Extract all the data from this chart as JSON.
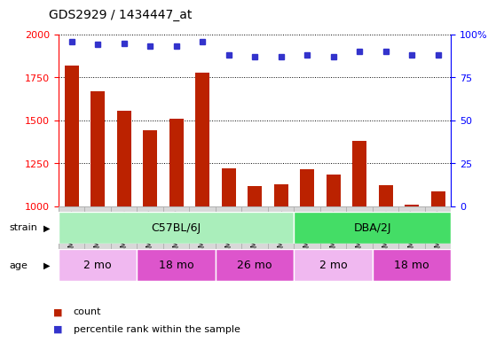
{
  "title": "GDS2929 / 1434447_at",
  "samples": [
    "GSM152256",
    "GSM152257",
    "GSM152258",
    "GSM152259",
    "GSM152260",
    "GSM152261",
    "GSM152262",
    "GSM152263",
    "GSM152264",
    "GSM152265",
    "GSM152266",
    "GSM152267",
    "GSM152268",
    "GSM152269",
    "GSM152270"
  ],
  "counts": [
    1820,
    1670,
    1555,
    1440,
    1510,
    1775,
    1220,
    1115,
    1130,
    1215,
    1185,
    1380,
    1120,
    1010,
    1085
  ],
  "percentiles": [
    96,
    94,
    95,
    93,
    93,
    96,
    88,
    87,
    87,
    88,
    87,
    90,
    90,
    88,
    88
  ],
  "ylim_left": [
    1000,
    2000
  ],
  "ylim_right": [
    0,
    100
  ],
  "yticks_left": [
    1000,
    1250,
    1500,
    1750,
    2000
  ],
  "yticks_right": [
    0,
    25,
    50,
    75,
    100
  ],
  "bar_color": "#bb2200",
  "dot_color": "#3333cc",
  "strain_groups": [
    {
      "label": "C57BL/6J",
      "start": 0,
      "end": 8,
      "color": "#aaeebb"
    },
    {
      "label": "DBA/2J",
      "start": 9,
      "end": 14,
      "color": "#44dd66"
    }
  ],
  "age_groups": [
    {
      "label": "2 mo",
      "start": 0,
      "end": 2,
      "color": "#f0b8f0"
    },
    {
      "label": "18 mo",
      "start": 3,
      "end": 5,
      "color": "#dd55cc"
    },
    {
      "label": "26 mo",
      "start": 6,
      "end": 8,
      "color": "#dd55cc"
    },
    {
      "label": "2 mo",
      "start": 9,
      "end": 11,
      "color": "#f0b8f0"
    },
    {
      "label": "18 mo",
      "start": 12,
      "end": 14,
      "color": "#dd55cc"
    }
  ],
  "legend_count_label": "count",
  "legend_pct_label": "percentile rank within the sample",
  "strain_label": "strain",
  "age_label": "age",
  "xtick_bg": "#d8d8d8",
  "plot_bg": "#ffffff"
}
